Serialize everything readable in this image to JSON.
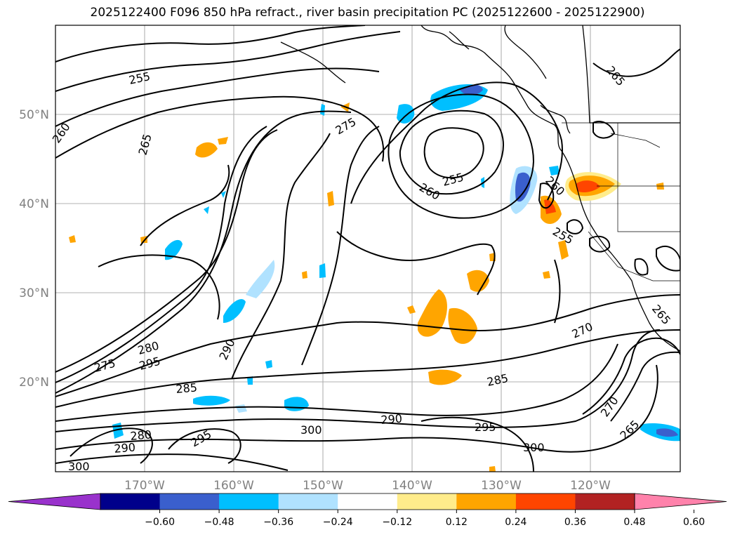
{
  "title": "2025122400 F096 850 hPa refract., river basin precipitation PC (2025122600 - 2025122900)",
  "lat_labels": [
    "50°N",
    "40°N",
    "30°N",
    "20°N"
  ],
  "lon_labels": [
    "170°W",
    "160°W",
    "150°W",
    "140°W",
    "130°W",
    "120°W"
  ],
  "contour_labels": [
    "255",
    "260",
    "265",
    "275",
    "255",
    "260",
    "260",
    "255",
    "265",
    "270",
    "275",
    "280",
    "295",
    "290",
    "285",
    "280",
    "290",
    "295",
    "300",
    "285",
    "290",
    "300",
    "295",
    "300",
    "270",
    "265",
    "265"
  ],
  "colorbar": {
    "ticks": [
      "−0.60",
      "−0.48",
      "−0.36",
      "−0.24",
      "−0.12",
      "0.12",
      "0.24",
      "0.36",
      "0.48",
      "0.60"
    ],
    "colors": [
      "#9932cc",
      "#00008b",
      "#3a5fcd",
      "#00bfff",
      "#b0e2ff",
      "#ffffff",
      "#ffec8b",
      "#ffa500",
      "#ff4500",
      "#b22222",
      "#ff82ab"
    ]
  },
  "shading_colors": {
    "neg_light": "#b0e2ff",
    "neg_mid": "#00bfff",
    "neg_strong": "#3a5fcd",
    "pos_light": "#ffec8b",
    "pos_mid": "#ffa500",
    "pos_strong": "#ff4500"
  }
}
